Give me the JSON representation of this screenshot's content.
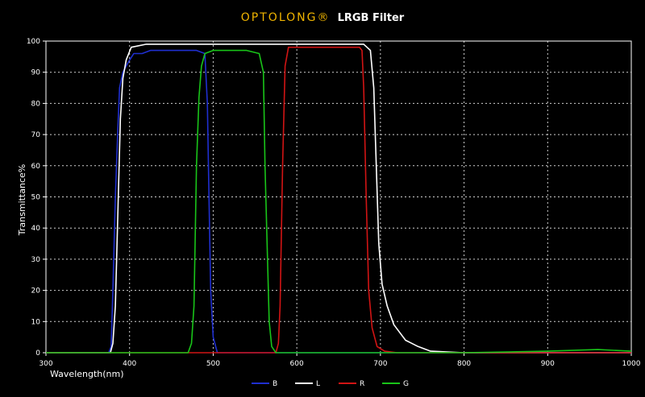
{
  "chart_data": {
    "type": "line",
    "title_brand": "OPTOLONG®",
    "title_rest": "LRGB Filter",
    "xlabel": "Wavelength(nm)",
    "ylabel": "Transmittance%",
    "xlim": [
      300,
      1000
    ],
    "ylim": [
      0,
      100
    ],
    "x_ticks": [
      300,
      400,
      500,
      600,
      700,
      800,
      900,
      1000
    ],
    "y_ticks": [
      0,
      10,
      20,
      30,
      40,
      50,
      60,
      70,
      80,
      90,
      100
    ],
    "grid": true,
    "legend_position": "bottom-center",
    "series": [
      {
        "name": "B",
        "color": "#1f2fd0",
        "points": [
          [
            300,
            0
          ],
          [
            375,
            0
          ],
          [
            378,
            2
          ],
          [
            380,
            20
          ],
          [
            383,
            50
          ],
          [
            386,
            72
          ],
          [
            388,
            85
          ],
          [
            392,
            90
          ],
          [
            398,
            93
          ],
          [
            405,
            96
          ],
          [
            415,
            96
          ],
          [
            425,
            97
          ],
          [
            440,
            97
          ],
          [
            460,
            97
          ],
          [
            480,
            97
          ],
          [
            490,
            96
          ],
          [
            493,
            80
          ],
          [
            495,
            50
          ],
          [
            497,
            20
          ],
          [
            500,
            5
          ],
          [
            505,
            0
          ],
          [
            1000,
            0
          ]
        ]
      },
      {
        "name": "L",
        "color": "#ffffff",
        "points": [
          [
            300,
            0
          ],
          [
            377,
            0
          ],
          [
            380,
            3
          ],
          [
            383,
            15
          ],
          [
            386,
            45
          ],
          [
            389,
            75
          ],
          [
            392,
            88
          ],
          [
            396,
            94
          ],
          [
            402,
            98
          ],
          [
            420,
            99
          ],
          [
            450,
            99
          ],
          [
            500,
            99
          ],
          [
            550,
            99
          ],
          [
            600,
            99
          ],
          [
            650,
            99
          ],
          [
            680,
            99
          ],
          [
            688,
            97
          ],
          [
            692,
            85
          ],
          [
            695,
            60
          ],
          [
            698,
            35
          ],
          [
            702,
            22
          ],
          [
            708,
            15
          ],
          [
            716,
            9
          ],
          [
            730,
            4
          ],
          [
            745,
            2
          ],
          [
            760,
            0.5
          ],
          [
            800,
            0
          ],
          [
            1000,
            0
          ]
        ]
      },
      {
        "name": "R",
        "color": "#d11414",
        "points": [
          [
            300,
            0
          ],
          [
            575,
            0
          ],
          [
            578,
            3
          ],
          [
            580,
            15
          ],
          [
            583,
            60
          ],
          [
            586,
            92
          ],
          [
            590,
            98
          ],
          [
            620,
            98
          ],
          [
            650,
            98
          ],
          [
            675,
            98
          ],
          [
            678,
            97
          ],
          [
            680,
            85
          ],
          [
            683,
            50
          ],
          [
            686,
            20
          ],
          [
            690,
            8
          ],
          [
            696,
            2
          ],
          [
            705,
            0.5
          ],
          [
            720,
            0
          ],
          [
            1000,
            0
          ]
        ]
      },
      {
        "name": "G",
        "color": "#19c419",
        "points": [
          [
            300,
            0
          ],
          [
            470,
            0
          ],
          [
            474,
            3
          ],
          [
            477,
            15
          ],
          [
            480,
            60
          ],
          [
            483,
            82
          ],
          [
            486,
            92
          ],
          [
            490,
            96
          ],
          [
            500,
            97
          ],
          [
            520,
            97
          ],
          [
            540,
            97
          ],
          [
            555,
            96
          ],
          [
            560,
            90
          ],
          [
            562,
            60
          ],
          [
            565,
            30
          ],
          [
            567,
            10
          ],
          [
            570,
            2
          ],
          [
            575,
            0
          ],
          [
            800,
            0
          ],
          [
            900,
            0.5
          ],
          [
            960,
            1
          ],
          [
            1000,
            0.5
          ]
        ]
      }
    ]
  }
}
